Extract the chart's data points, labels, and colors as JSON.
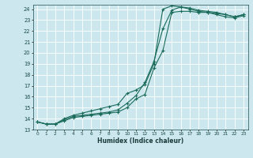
{
  "xlabel": "Humidex (Indice chaleur)",
  "bg_color": "#cce8ee",
  "grid_color": "#b0d8e0",
  "line_color": "#1a6b5a",
  "xlim": [
    -0.5,
    23.5
  ],
  "ylim": [
    13.0,
    24.4
  ],
  "yticks": [
    13,
    14,
    15,
    16,
    17,
    18,
    19,
    20,
    21,
    22,
    23,
    24
  ],
  "xticks": [
    0,
    1,
    2,
    3,
    4,
    5,
    6,
    7,
    8,
    9,
    10,
    11,
    12,
    13,
    14,
    15,
    16,
    17,
    18,
    19,
    20,
    21,
    22,
    23
  ],
  "line1_x": [
    0,
    1,
    2,
    3,
    4,
    5,
    6,
    7,
    8,
    9,
    10,
    11,
    12,
    13,
    14,
    15,
    16,
    17,
    18,
    19,
    20,
    21,
    22,
    23
  ],
  "line1_y": [
    13.7,
    13.5,
    13.5,
    13.8,
    14.1,
    14.2,
    14.3,
    14.4,
    14.5,
    14.6,
    15.0,
    15.8,
    16.2,
    18.6,
    20.2,
    23.7,
    23.8,
    23.8,
    23.7,
    23.7,
    23.6,
    23.5,
    23.3,
    23.5
  ],
  "line2_x": [
    0,
    1,
    2,
    3,
    4,
    5,
    6,
    7,
    8,
    9,
    10,
    11,
    12,
    13,
    14,
    15,
    16,
    17,
    18,
    19,
    20,
    21,
    22,
    23
  ],
  "line2_y": [
    13.7,
    13.5,
    13.5,
    13.9,
    14.2,
    14.3,
    14.4,
    14.5,
    14.6,
    14.8,
    15.4,
    16.1,
    17.3,
    19.2,
    22.2,
    23.9,
    24.2,
    24.1,
    23.9,
    23.8,
    23.7,
    23.5,
    23.3,
    23.5
  ],
  "line3_x": [
    0,
    1,
    2,
    3,
    4,
    5,
    6,
    7,
    8,
    9,
    10,
    11,
    12,
    13,
    14,
    15,
    16,
    17,
    18,
    19,
    20,
    21,
    22,
    23
  ],
  "line3_y": [
    13.7,
    13.5,
    13.5,
    14.0,
    14.3,
    14.5,
    14.7,
    14.9,
    15.1,
    15.3,
    16.3,
    16.6,
    17.1,
    19.0,
    24.0,
    24.3,
    24.2,
    24.0,
    23.8,
    23.7,
    23.5,
    23.3,
    23.2,
    23.4
  ]
}
